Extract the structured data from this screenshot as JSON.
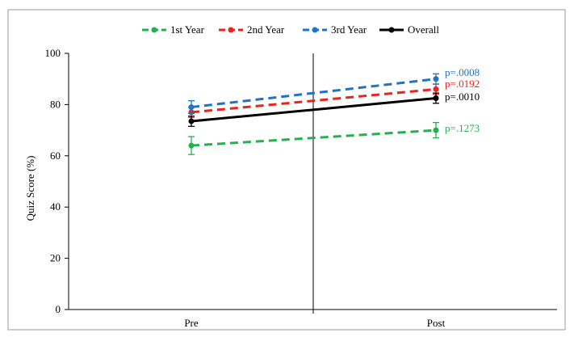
{
  "chart_data": {
    "type": "line",
    "categories": [
      "Pre",
      "Post"
    ],
    "ylabel": "Quiz Score (%)",
    "ylim": [
      0,
      100
    ],
    "yticks": [
      0,
      20,
      40,
      60,
      80,
      100
    ],
    "grid": false,
    "legend_position": "top",
    "series": [
      {
        "name": "1st Year",
        "values": [
          64,
          70
        ],
        "error": [
          3.5,
          3
        ],
        "color": "#22b14c",
        "dashed": true,
        "p_value": "p=.1273"
      },
      {
        "name": "2nd Year",
        "values": [
          77,
          86
        ],
        "error": [
          2,
          2
        ],
        "color": "#e8241f",
        "dashed": true,
        "p_value": "p=.0192"
      },
      {
        "name": "3rd Year",
        "values": [
          79,
          90
        ],
        "error": [
          2.5,
          2
        ],
        "color": "#1e73c8",
        "dashed": true,
        "p_value": "p=.0008"
      },
      {
        "name": "Overall",
        "values": [
          73.5,
          82.5
        ],
        "error": [
          2,
          2
        ],
        "color": "#000000",
        "dashed": false,
        "p_value": "p=.0010"
      }
    ]
  }
}
